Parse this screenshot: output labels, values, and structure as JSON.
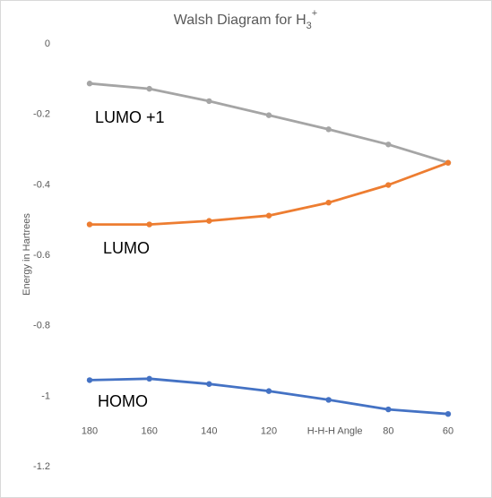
{
  "chart_data": {
    "type": "line",
    "title": "Walsh Diagram for H",
    "title_subscript": "3",
    "title_superscript": "+",
    "xlabel": "H-H-H Angle",
    "ylabel": "Energy in Hartrees",
    "x": [
      180,
      160,
      140,
      120,
      100,
      80,
      60
    ],
    "x_tick_labels": [
      "180",
      "160",
      "140",
      "120",
      "",
      "80",
      "60"
    ],
    "ylim": [
      -1.2,
      0
    ],
    "y_ticks": [
      0,
      -0.2,
      -0.4,
      -0.6,
      -0.8,
      -1,
      -1.2
    ],
    "y_tick_labels": [
      "0",
      "-0.2",
      "-0.4",
      "-0.6",
      "-0.8",
      "-1",
      "-1.2"
    ],
    "grid": false,
    "legend": "none",
    "series": [
      {
        "name": "LUMO +1",
        "color": "#a5a5a5",
        "values": [
          -0.115,
          -0.13,
          -0.165,
          -0.205,
          -0.245,
          -0.288,
          -0.34
        ]
      },
      {
        "name": "LUMO",
        "color": "#ed7d31",
        "values": [
          -0.515,
          -0.515,
          -0.505,
          -0.49,
          -0.453,
          -0.403,
          -0.34
        ]
      },
      {
        "name": "HOMO",
        "color": "#4472c4",
        "values": [
          -0.957,
          -0.953,
          -0.968,
          -0.988,
          -1.013,
          -1.04,
          -1.053
        ]
      }
    ]
  }
}
